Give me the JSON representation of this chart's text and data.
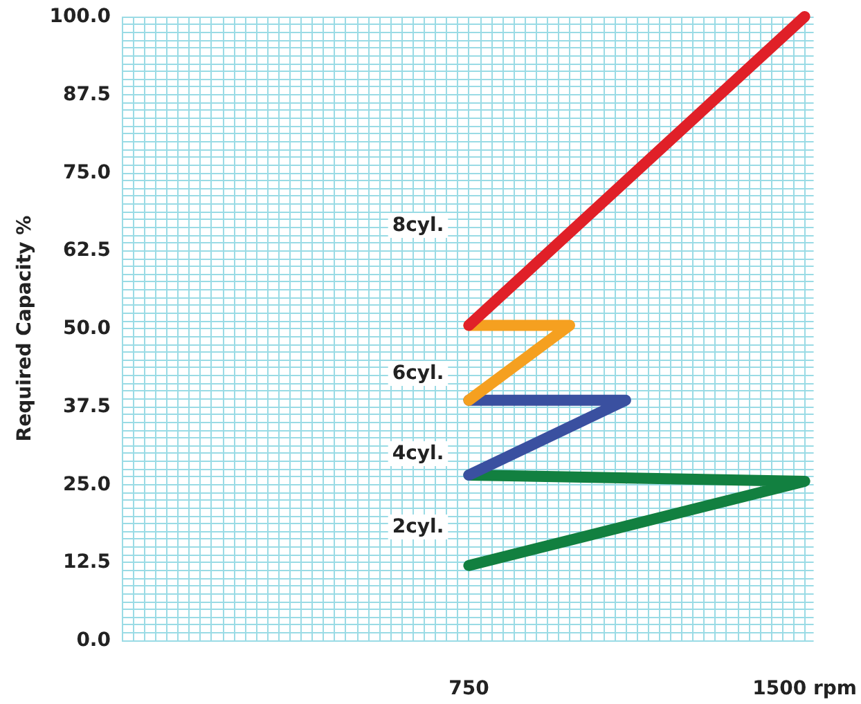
{
  "chart_data": {
    "type": "line",
    "ylabel": "Required Capacity %",
    "xlim": [
      -25,
      1520
    ],
    "xticks": [
      {
        "value": -25,
        "label": null
      },
      {
        "value": 0,
        "label": null
      },
      {
        "value": 25,
        "label": null
      },
      {
        "value": 50,
        "label": null
      },
      {
        "value": 75,
        "label": null
      },
      {
        "value": 100,
        "label": null
      },
      {
        "value": 125,
        "label": null
      },
      {
        "value": 150,
        "label": null
      },
      {
        "value": 175,
        "label": null
      },
      {
        "value": 200,
        "label": null
      },
      {
        "value": 225,
        "label": null
      },
      {
        "value": 250,
        "label": null
      },
      {
        "value": 275,
        "label": null
      },
      {
        "value": 300,
        "label": null
      },
      {
        "value": 325,
        "label": null
      },
      {
        "value": 350,
        "label": null
      },
      {
        "value": 375,
        "label": null
      },
      {
        "value": 400,
        "label": null
      },
      {
        "value": 425,
        "label": null
      },
      {
        "value": 450,
        "label": null
      },
      {
        "value": 475,
        "label": null
      },
      {
        "value": 500,
        "label": null
      },
      {
        "value": 525,
        "label": null
      },
      {
        "value": 550,
        "label": null
      },
      {
        "value": 575,
        "label": null
      },
      {
        "value": 600,
        "label": null
      },
      {
        "value": 625,
        "label": null
      },
      {
        "value": 650,
        "label": null
      },
      {
        "value": 675,
        "label": null
      },
      {
        "value": 700,
        "label": null
      },
      {
        "value": 725,
        "label": null
      },
      {
        "value": 750,
        "label": "750"
      },
      {
        "value": 775,
        "label": null
      },
      {
        "value": 800,
        "label": null
      },
      {
        "value": 825,
        "label": null
      },
      {
        "value": 850,
        "label": null
      },
      {
        "value": 875,
        "label": null
      },
      {
        "value": 900,
        "label": null
      },
      {
        "value": 925,
        "label": null
      },
      {
        "value": 950,
        "label": null
      },
      {
        "value": 975,
        "label": null
      },
      {
        "value": 1000,
        "label": null
      },
      {
        "value": 1025,
        "label": null
      },
      {
        "value": 1050,
        "label": null
      },
      {
        "value": 1075,
        "label": null
      },
      {
        "value": 1100,
        "label": null
      },
      {
        "value": 1125,
        "label": null
      },
      {
        "value": 1150,
        "label": null
      },
      {
        "value": 1175,
        "label": null
      },
      {
        "value": 1200,
        "label": null
      },
      {
        "value": 1225,
        "label": null
      },
      {
        "value": 1250,
        "label": null
      },
      {
        "value": 1275,
        "label": null
      },
      {
        "value": 1300,
        "label": null
      },
      {
        "value": 1325,
        "label": null
      },
      {
        "value": 1350,
        "label": null
      },
      {
        "value": 1375,
        "label": null
      },
      {
        "value": 1400,
        "label": null
      },
      {
        "value": 1425,
        "label": null
      },
      {
        "value": 1450,
        "label": null
      },
      {
        "value": 1475,
        "label": null
      },
      {
        "value": 1500,
        "label": "1500 rpm"
      }
    ],
    "ylim": [
      0,
      100
    ],
    "yticks": [
      {
        "value": 0,
        "label": "0.0"
      },
      {
        "value": 1.25,
        "label": null
      },
      {
        "value": 2.5,
        "label": null
      },
      {
        "value": 3.75,
        "label": null
      },
      {
        "value": 5,
        "label": null
      },
      {
        "value": 6.25,
        "label": null
      },
      {
        "value": 7.5,
        "label": null
      },
      {
        "value": 8.75,
        "label": null
      },
      {
        "value": 10,
        "label": null
      },
      {
        "value": 11.25,
        "label": null
      },
      {
        "value": 12.5,
        "label": "12.5"
      },
      {
        "value": 13.75,
        "label": null
      },
      {
        "value": 15,
        "label": null
      },
      {
        "value": 16.25,
        "label": null
      },
      {
        "value": 17.5,
        "label": null
      },
      {
        "value": 18.75,
        "label": null
      },
      {
        "value": 20,
        "label": null
      },
      {
        "value": 21.25,
        "label": null
      },
      {
        "value": 22.5,
        "label": null
      },
      {
        "value": 23.75,
        "label": null
      },
      {
        "value": 25,
        "label": "25.0"
      },
      {
        "value": 26.25,
        "label": null
      },
      {
        "value": 27.5,
        "label": null
      },
      {
        "value": 28.75,
        "label": null
      },
      {
        "value": 30,
        "label": null
      },
      {
        "value": 31.25,
        "label": null
      },
      {
        "value": 32.5,
        "label": null
      },
      {
        "value": 33.75,
        "label": null
      },
      {
        "value": 35,
        "label": null
      },
      {
        "value": 36.25,
        "label": null
      },
      {
        "value": 37.5,
        "label": "37.5"
      },
      {
        "value": 38.75,
        "label": null
      },
      {
        "value": 40,
        "label": null
      },
      {
        "value": 41.25,
        "label": null
      },
      {
        "value": 42.5,
        "label": null
      },
      {
        "value": 43.75,
        "label": null
      },
      {
        "value": 45,
        "label": null
      },
      {
        "value": 46.25,
        "label": null
      },
      {
        "value": 47.5,
        "label": null
      },
      {
        "value": 48.75,
        "label": null
      },
      {
        "value": 50,
        "label": "50.0"
      },
      {
        "value": 51.25,
        "label": null
      },
      {
        "value": 52.5,
        "label": null
      },
      {
        "value": 53.75,
        "label": null
      },
      {
        "value": 55,
        "label": null
      },
      {
        "value": 56.25,
        "label": null
      },
      {
        "value": 57.5,
        "label": null
      },
      {
        "value": 58.75,
        "label": null
      },
      {
        "value": 60,
        "label": null
      },
      {
        "value": 61.25,
        "label": null
      },
      {
        "value": 62.5,
        "label": "62.5"
      },
      {
        "value": 63.75,
        "label": null
      },
      {
        "value": 65,
        "label": null
      },
      {
        "value": 66.25,
        "label": null
      },
      {
        "value": 67.5,
        "label": null
      },
      {
        "value": 68.75,
        "label": null
      },
      {
        "value": 70,
        "label": null
      },
      {
        "value": 71.25,
        "label": null
      },
      {
        "value": 72.5,
        "label": null
      },
      {
        "value": 73.75,
        "label": null
      },
      {
        "value": 75,
        "label": "75.0"
      },
      {
        "value": 76.25,
        "label": null
      },
      {
        "value": 77.5,
        "label": null
      },
      {
        "value": 78.75,
        "label": null
      },
      {
        "value": 80,
        "label": null
      },
      {
        "value": 81.25,
        "label": null
      },
      {
        "value": 82.5,
        "label": null
      },
      {
        "value": 83.75,
        "label": null
      },
      {
        "value": 85,
        "label": null
      },
      {
        "value": 86.25,
        "label": null
      },
      {
        "value": 87.5,
        "label": "87.5"
      },
      {
        "value": 88.75,
        "label": null
      },
      {
        "value": 90,
        "label": null
      },
      {
        "value": 91.25,
        "label": null
      },
      {
        "value": 92.5,
        "label": null
      },
      {
        "value": 93.75,
        "label": null
      },
      {
        "value": 95,
        "label": null
      },
      {
        "value": 96.25,
        "label": null
      },
      {
        "value": 97.5,
        "label": null
      },
      {
        "value": 98.75,
        "label": null
      },
      {
        "value": 100,
        "label": "100.0"
      }
    ],
    "grid": true,
    "marker": "none",
    "line_style": "solid",
    "series": [
      {
        "color": "#128040",
        "x": [
          750,
          1500,
          750
        ],
        "values": [
          12,
          25.5,
          26.5
        ]
      },
      {
        "color": "#3a50a0",
        "x": [
          750,
          1100,
          750
        ],
        "values": [
          26.5,
          38.5,
          38.5
        ]
      },
      {
        "color": "#f5a020",
        "x": [
          750,
          975,
          750
        ],
        "values": [
          38.5,
          50.5,
          50.5
        ]
      },
      {
        "color": "#e02028",
        "x": [
          750,
          1500
        ],
        "values": [
          50.5,
          100
        ]
      }
    ],
    "annotations": [
      "8cyl.",
      "6cyl.",
      "4cyl.",
      "2cyl."
    ]
  }
}
